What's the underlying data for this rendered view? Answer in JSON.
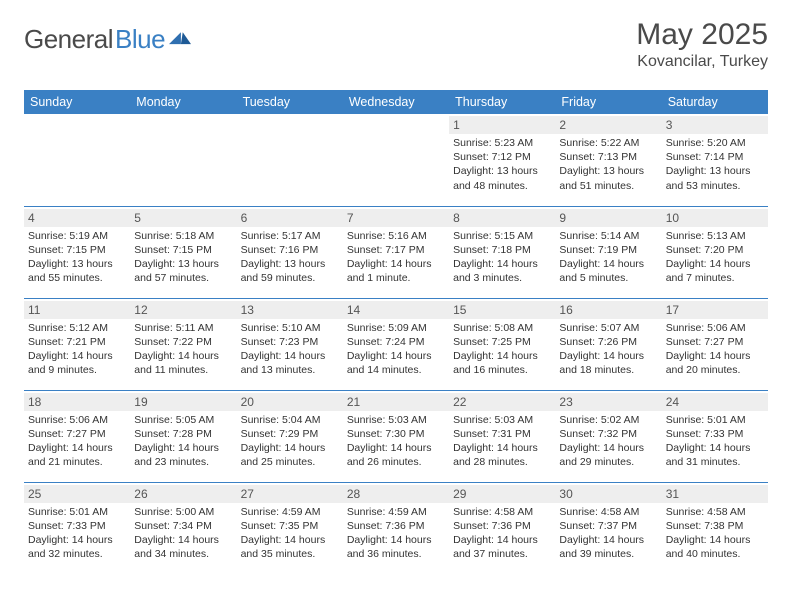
{
  "brand": {
    "part1": "General",
    "part2": "Blue",
    "mark_color": "#2f6fb0"
  },
  "header": {
    "title": "May 2025",
    "location": "Kovancilar, Turkey"
  },
  "colors": {
    "header_bg": "#3a80c4",
    "header_text": "#ffffff",
    "daynum_bg": "#eeeeee",
    "rule": "#3a80c4",
    "body_text": "#333333"
  },
  "day_labels": [
    "Sunday",
    "Monday",
    "Tuesday",
    "Wednesday",
    "Thursday",
    "Friday",
    "Saturday"
  ],
  "weeks": [
    [
      null,
      null,
      null,
      null,
      {
        "n": "1",
        "sr": "Sunrise: 5:23 AM",
        "ss": "Sunset: 7:12 PM",
        "d1": "Daylight: 13 hours",
        "d2": "and 48 minutes."
      },
      {
        "n": "2",
        "sr": "Sunrise: 5:22 AM",
        "ss": "Sunset: 7:13 PM",
        "d1": "Daylight: 13 hours",
        "d2": "and 51 minutes."
      },
      {
        "n": "3",
        "sr": "Sunrise: 5:20 AM",
        "ss": "Sunset: 7:14 PM",
        "d1": "Daylight: 13 hours",
        "d2": "and 53 minutes."
      }
    ],
    [
      {
        "n": "4",
        "sr": "Sunrise: 5:19 AM",
        "ss": "Sunset: 7:15 PM",
        "d1": "Daylight: 13 hours",
        "d2": "and 55 minutes."
      },
      {
        "n": "5",
        "sr": "Sunrise: 5:18 AM",
        "ss": "Sunset: 7:15 PM",
        "d1": "Daylight: 13 hours",
        "d2": "and 57 minutes."
      },
      {
        "n": "6",
        "sr": "Sunrise: 5:17 AM",
        "ss": "Sunset: 7:16 PM",
        "d1": "Daylight: 13 hours",
        "d2": "and 59 minutes."
      },
      {
        "n": "7",
        "sr": "Sunrise: 5:16 AM",
        "ss": "Sunset: 7:17 PM",
        "d1": "Daylight: 14 hours",
        "d2": "and 1 minute."
      },
      {
        "n": "8",
        "sr": "Sunrise: 5:15 AM",
        "ss": "Sunset: 7:18 PM",
        "d1": "Daylight: 14 hours",
        "d2": "and 3 minutes."
      },
      {
        "n": "9",
        "sr": "Sunrise: 5:14 AM",
        "ss": "Sunset: 7:19 PM",
        "d1": "Daylight: 14 hours",
        "d2": "and 5 minutes."
      },
      {
        "n": "10",
        "sr": "Sunrise: 5:13 AM",
        "ss": "Sunset: 7:20 PM",
        "d1": "Daylight: 14 hours",
        "d2": "and 7 minutes."
      }
    ],
    [
      {
        "n": "11",
        "sr": "Sunrise: 5:12 AM",
        "ss": "Sunset: 7:21 PM",
        "d1": "Daylight: 14 hours",
        "d2": "and 9 minutes."
      },
      {
        "n": "12",
        "sr": "Sunrise: 5:11 AM",
        "ss": "Sunset: 7:22 PM",
        "d1": "Daylight: 14 hours",
        "d2": "and 11 minutes."
      },
      {
        "n": "13",
        "sr": "Sunrise: 5:10 AM",
        "ss": "Sunset: 7:23 PM",
        "d1": "Daylight: 14 hours",
        "d2": "and 13 minutes."
      },
      {
        "n": "14",
        "sr": "Sunrise: 5:09 AM",
        "ss": "Sunset: 7:24 PM",
        "d1": "Daylight: 14 hours",
        "d2": "and 14 minutes."
      },
      {
        "n": "15",
        "sr": "Sunrise: 5:08 AM",
        "ss": "Sunset: 7:25 PM",
        "d1": "Daylight: 14 hours",
        "d2": "and 16 minutes."
      },
      {
        "n": "16",
        "sr": "Sunrise: 5:07 AM",
        "ss": "Sunset: 7:26 PM",
        "d1": "Daylight: 14 hours",
        "d2": "and 18 minutes."
      },
      {
        "n": "17",
        "sr": "Sunrise: 5:06 AM",
        "ss": "Sunset: 7:27 PM",
        "d1": "Daylight: 14 hours",
        "d2": "and 20 minutes."
      }
    ],
    [
      {
        "n": "18",
        "sr": "Sunrise: 5:06 AM",
        "ss": "Sunset: 7:27 PM",
        "d1": "Daylight: 14 hours",
        "d2": "and 21 minutes."
      },
      {
        "n": "19",
        "sr": "Sunrise: 5:05 AM",
        "ss": "Sunset: 7:28 PM",
        "d1": "Daylight: 14 hours",
        "d2": "and 23 minutes."
      },
      {
        "n": "20",
        "sr": "Sunrise: 5:04 AM",
        "ss": "Sunset: 7:29 PM",
        "d1": "Daylight: 14 hours",
        "d2": "and 25 minutes."
      },
      {
        "n": "21",
        "sr": "Sunrise: 5:03 AM",
        "ss": "Sunset: 7:30 PM",
        "d1": "Daylight: 14 hours",
        "d2": "and 26 minutes."
      },
      {
        "n": "22",
        "sr": "Sunrise: 5:03 AM",
        "ss": "Sunset: 7:31 PM",
        "d1": "Daylight: 14 hours",
        "d2": "and 28 minutes."
      },
      {
        "n": "23",
        "sr": "Sunrise: 5:02 AM",
        "ss": "Sunset: 7:32 PM",
        "d1": "Daylight: 14 hours",
        "d2": "and 29 minutes."
      },
      {
        "n": "24",
        "sr": "Sunrise: 5:01 AM",
        "ss": "Sunset: 7:33 PM",
        "d1": "Daylight: 14 hours",
        "d2": "and 31 minutes."
      }
    ],
    [
      {
        "n": "25",
        "sr": "Sunrise: 5:01 AM",
        "ss": "Sunset: 7:33 PM",
        "d1": "Daylight: 14 hours",
        "d2": "and 32 minutes."
      },
      {
        "n": "26",
        "sr": "Sunrise: 5:00 AM",
        "ss": "Sunset: 7:34 PM",
        "d1": "Daylight: 14 hours",
        "d2": "and 34 minutes."
      },
      {
        "n": "27",
        "sr": "Sunrise: 4:59 AM",
        "ss": "Sunset: 7:35 PM",
        "d1": "Daylight: 14 hours",
        "d2": "and 35 minutes."
      },
      {
        "n": "28",
        "sr": "Sunrise: 4:59 AM",
        "ss": "Sunset: 7:36 PM",
        "d1": "Daylight: 14 hours",
        "d2": "and 36 minutes."
      },
      {
        "n": "29",
        "sr": "Sunrise: 4:58 AM",
        "ss": "Sunset: 7:36 PM",
        "d1": "Daylight: 14 hours",
        "d2": "and 37 minutes."
      },
      {
        "n": "30",
        "sr": "Sunrise: 4:58 AM",
        "ss": "Sunset: 7:37 PM",
        "d1": "Daylight: 14 hours",
        "d2": "and 39 minutes."
      },
      {
        "n": "31",
        "sr": "Sunrise: 4:58 AM",
        "ss": "Sunset: 7:38 PM",
        "d1": "Daylight: 14 hours",
        "d2": "and 40 minutes."
      }
    ]
  ]
}
